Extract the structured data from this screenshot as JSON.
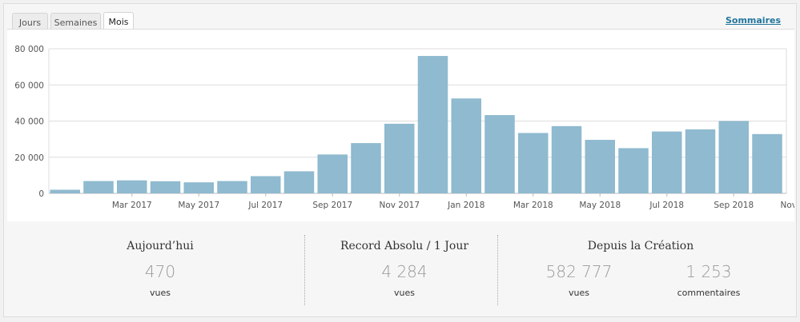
{
  "tabs": [
    {
      "label": "Jours",
      "active": false
    },
    {
      "label": "Semaines",
      "active": false
    },
    {
      "label": "Mois",
      "active": true
    }
  ],
  "summary_link": "Sommaires",
  "colors": {
    "bar": "#8fbacf",
    "grid": "#dddddd",
    "link": "#21759b"
  },
  "chart_data": {
    "type": "bar",
    "categories": [
      "Jan 2017",
      "Feb 2017",
      "Mar 2017",
      "Apr 2017",
      "May 2017",
      "Jun 2017",
      "Jul 2017",
      "Aug 2017",
      "Sep 2017",
      "Oct 2017",
      "Nov 2017",
      "Dec 2017",
      "Jan 2018",
      "Feb 2018",
      "Mar 2018",
      "Apr 2018",
      "May 2018",
      "Jun 2018",
      "Jul 2018",
      "Aug 2018",
      "Sep 2018",
      "Oct 2018",
      "Nov 2018"
    ],
    "x_tick_labels": [
      {
        "category": "Mar 2017",
        "label": "Mar 2017"
      },
      {
        "category": "May 2017",
        "label": "May 2017"
      },
      {
        "category": "Jul 2017",
        "label": "Jul 2017"
      },
      {
        "category": "Sep 2017",
        "label": "Sep 2017"
      },
      {
        "category": "Nov 2017",
        "label": "Nov 2017"
      },
      {
        "category": "Jan 2018",
        "label": "Jan 2018"
      },
      {
        "category": "Mar 2018",
        "label": "Mar 2018"
      },
      {
        "category": "May 2018",
        "label": "May 2018"
      },
      {
        "category": "Jul 2018",
        "label": "Jul 2018"
      },
      {
        "category": "Sep 2018",
        "label": "Sep 2018"
      },
      {
        "category": "Nov 2018",
        "label": "Nov 2018"
      }
    ],
    "values": [
      2000,
      6800,
      7200,
      6700,
      6100,
      6800,
      9500,
      12200,
      21500,
      27800,
      38500,
      76000,
      52500,
      43300,
      33400,
      37200,
      29600,
      25000,
      34200,
      35400,
      40000,
      32800,
      0
    ],
    "y_ticks": [
      {
        "value": 0,
        "label": "0"
      },
      {
        "value": 20000,
        "label": "20 000"
      },
      {
        "value": 40000,
        "label": "40 000"
      },
      {
        "value": 60000,
        "label": "60 000"
      },
      {
        "value": 80000,
        "label": "80 000"
      }
    ],
    "ylim": [
      0,
      80000
    ],
    "grid": true
  },
  "stats": {
    "today": {
      "title": "Aujourd’hui",
      "value": "470",
      "unit": "vues"
    },
    "record": {
      "title": "Record Absolu / 1 Jour",
      "value": "4 284",
      "unit": "vues"
    },
    "since": {
      "title": "Depuis la Création",
      "views_value": "582 777",
      "views_unit": "vues",
      "comments_value": "1 253",
      "comments_unit": "commentaires"
    }
  }
}
